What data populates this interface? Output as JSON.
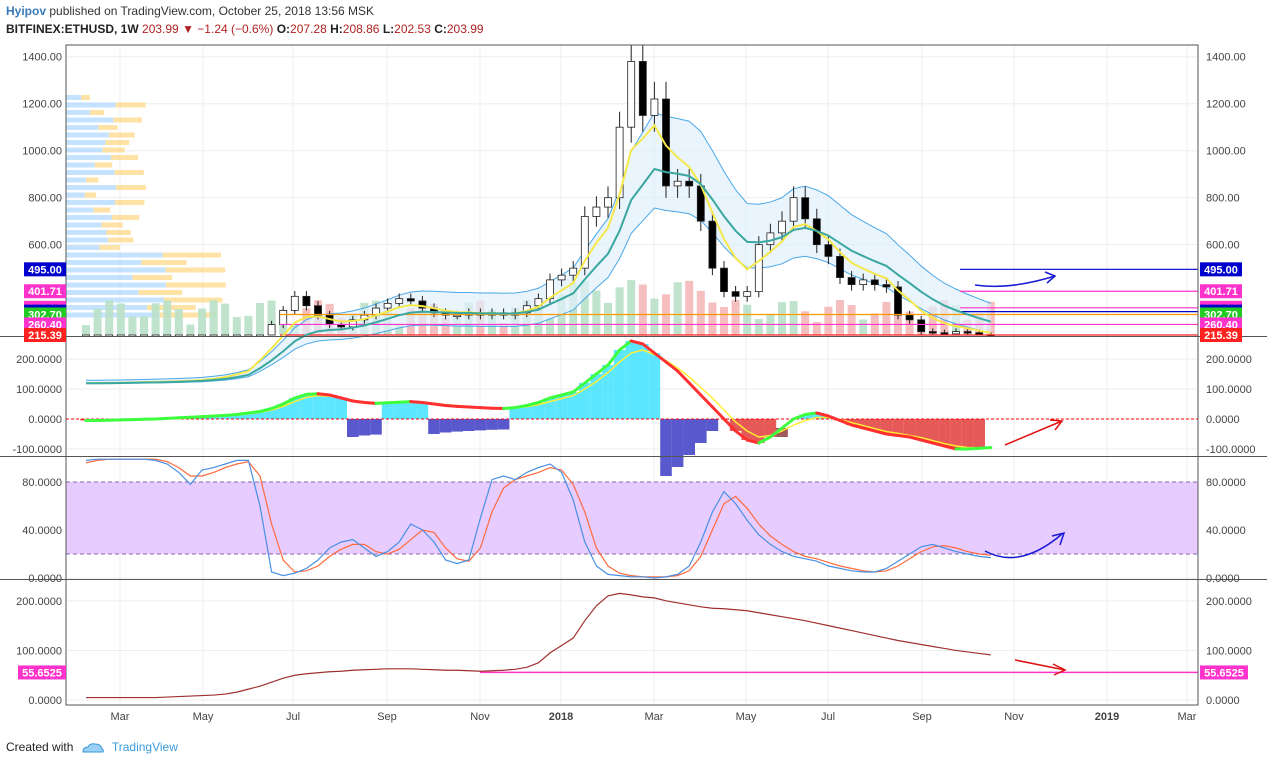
{
  "header": {
    "author": "Hyipov",
    "published": "published on TradingView.com, October 25, 2018 13:56 MSK",
    "symbol": "BITFINEX:ETHUSD, 1W",
    "last": "203.99",
    "change": "−1.24 (−0.6%)",
    "o_label": "O:",
    "o": "207.28",
    "h_label": "H:",
    "h": "208.86",
    "l_label": "L:",
    "l": "202.53",
    "c_label": "C:",
    "c": "203.99"
  },
  "footer": {
    "created_with": "Created with",
    "brand": "TradingView"
  },
  "colors": {
    "bull": "#ffffff",
    "bear": "#000000",
    "ema_fast": "#f5e84a",
    "ema_slow": "#3aa8a0",
    "bb": "#4aa8e8",
    "macd_up": "#3dff3d",
    "macd_down": "#ff3030",
    "stoch_k": "#4a90e2",
    "stoch_d": "#ff6a3d",
    "stoch_band": "#e6ccff",
    "bottom_line": "#a03030",
    "arrow_blue": "#1a1ad4",
    "arrow_red": "#e01010",
    "magenta": "#ff33cc"
  },
  "chart_data": [
    {
      "type": "candlestick",
      "name": "BITFINEX:ETHUSD, 1W",
      "ylim": [
        215.39,
        1450
      ],
      "yticks": [
        1400,
        1200,
        1000,
        800,
        600
      ],
      "ytick_labels": [
        "1400.00",
        "1200.00",
        "1000.00",
        "800.00",
        "600.00"
      ],
      "x_labels": [
        "Mar",
        "May",
        "Jul",
        "Sep",
        "Nov",
        "2018",
        "Mar",
        "May",
        "Jul",
        "Sep",
        "Nov",
        "2019",
        "Mar"
      ],
      "close": [
        10,
        11,
        12,
        14,
        16,
        17,
        18,
        20,
        22,
        25,
        30,
        40,
        50,
        70,
        90,
        200,
        260,
        320,
        380,
        340,
        300,
        260,
        250,
        280,
        300,
        330,
        350,
        370,
        360,
        330,
        310,
        300,
        300,
        310,
        300,
        310,
        300,
        310,
        340,
        370,
        450,
        470,
        500,
        720,
        760,
        800,
        1100,
        1380,
        1150,
        1220,
        850,
        870,
        850,
        700,
        500,
        400,
        380,
        400,
        600,
        650,
        700,
        800,
        710,
        600,
        550,
        460,
        430,
        450,
        430,
        420,
        300,
        280,
        230,
        225,
        220,
        230,
        225,
        215,
        204
      ],
      "price_levels": [
        {
          "value": "495.00",
          "color": "#0000cc"
        },
        {
          "value": "401.71",
          "color": "#ff33cc"
        },
        {
          "value": "331.06",
          "color": "#ff33cc"
        },
        {
          "value": "315.00",
          "color": "#0000cc"
        },
        {
          "value": "302.70",
          "color": "#22cc22"
        },
        {
          "value": "260.40",
          "color": "#ff33cc"
        },
        {
          "value": "215.39",
          "color": "#ff2020"
        }
      ]
    },
    {
      "type": "line",
      "name": "MACD",
      "ylim": [
        -120,
        270
      ],
      "yticks": [
        200,
        100,
        0,
        -100
      ],
      "ytick_labels": [
        "200.0000",
        "100.0000",
        "0.0000",
        "-100.0000"
      ],
      "macd": [
        -5,
        -5,
        -4,
        -3,
        -2,
        -1,
        0,
        2,
        4,
        6,
        8,
        10,
        12,
        15,
        20,
        25,
        35,
        50,
        70,
        82,
        84,
        80,
        70,
        60,
        55,
        52,
        54,
        56,
        58,
        55,
        50,
        45,
        42,
        40,
        38,
        36,
        35,
        38,
        45,
        55,
        70,
        80,
        90,
        120,
        150,
        180,
        230,
        260,
        250,
        220,
        190,
        160,
        120,
        80,
        40,
        0,
        -40,
        -70,
        -80,
        -60,
        -30,
        0,
        15,
        20,
        10,
        -5,
        -20,
        -30,
        -40,
        -50,
        -55,
        -60,
        -70,
        -80,
        -90,
        -100,
        -100,
        -98,
        -95
      ],
      "signal": [
        -4,
        -4,
        -4,
        -3,
        -3,
        -2,
        -1,
        0,
        2,
        4,
        6,
        8,
        10,
        13,
        17,
        22,
        30,
        42,
        58,
        72,
        78,
        76,
        70,
        62,
        57,
        54,
        54,
        55,
        56,
        55,
        52,
        48,
        44,
        42,
        40,
        38,
        36,
        37,
        41,
        48,
        58,
        68,
        78,
        100,
        125,
        155,
        190,
        220,
        230,
        215,
        195,
        170,
        140,
        105,
        70,
        30,
        -10,
        -40,
        -60,
        -55,
        -40,
        -20,
        -5,
        5,
        5,
        -2,
        -12,
        -22,
        -32,
        -42,
        -48,
        -55,
        -62,
        -72,
        -82,
        -90,
        -95,
        -96,
        -95
      ]
    },
    {
      "type": "line",
      "name": "Stochastic RSI",
      "ylim": [
        0,
        100
      ],
      "yticks": [
        80,
        40,
        0
      ],
      "ytick_labels": [
        "80.0000",
        "40.0000",
        "0.0000"
      ],
      "band": [
        20,
        80
      ],
      "k": [
        98,
        99,
        99,
        99,
        99,
        99,
        98,
        95,
        88,
        78,
        90,
        92,
        95,
        98,
        98,
        60,
        5,
        2,
        4,
        8,
        15,
        25,
        30,
        32,
        25,
        18,
        22,
        30,
        45,
        40,
        30,
        15,
        12,
        15,
        50,
        82,
        85,
        82,
        88,
        92,
        95,
        88,
        65,
        30,
        10,
        3,
        2,
        1,
        1,
        0,
        1,
        3,
        10,
        30,
        55,
        72,
        62,
        48,
        36,
        28,
        22,
        18,
        16,
        14,
        10,
        8,
        6,
        5,
        5,
        8,
        14,
        20,
        26,
        28,
        25,
        22,
        20,
        18,
        17
      ],
      "d": [
        96,
        98,
        99,
        99,
        99,
        99,
        99,
        97,
        92,
        85,
        85,
        88,
        92,
        95,
        97,
        85,
        45,
        15,
        5,
        6,
        10,
        18,
        24,
        28,
        28,
        22,
        20,
        24,
        32,
        40,
        38,
        25,
        16,
        14,
        25,
        55,
        75,
        82,
        85,
        88,
        92,
        90,
        78,
        55,
        25,
        10,
        4,
        2,
        1,
        1,
        1,
        2,
        6,
        18,
        40,
        62,
        68,
        58,
        45,
        35,
        28,
        22,
        18,
        16,
        13,
        10,
        8,
        6,
        5,
        6,
        10,
        16,
        22,
        26,
        27,
        25,
        22,
        20,
        19
      ]
    },
    {
      "type": "line",
      "name": "Indicator",
      "ylim": [
        -10,
        240
      ],
      "yticks": [
        200,
        100,
        0
      ],
      "ytick_labels": [
        "200.0000",
        "100.0000",
        "0.0000"
      ],
      "values": [
        5,
        5,
        5,
        5,
        5,
        5,
        5,
        6,
        7,
        8,
        9,
        10,
        12,
        16,
        22,
        28,
        36,
        44,
        50,
        53,
        55,
        57,
        58,
        60,
        61,
        62,
        63,
        63,
        63,
        62,
        61,
        60,
        60,
        59,
        58,
        59,
        60,
        62,
        66,
        75,
        95,
        110,
        125,
        160,
        190,
        210,
        215,
        212,
        208,
        206,
        200,
        196,
        192,
        188,
        185,
        184,
        182,
        180,
        176,
        172,
        168,
        164,
        160,
        155,
        150,
        145,
        140,
        135,
        130,
        125,
        120,
        116,
        112,
        108,
        104,
        100,
        97,
        94,
        91
      ],
      "level": {
        "value": "55.6525",
        "color": "#ff33cc"
      }
    }
  ]
}
